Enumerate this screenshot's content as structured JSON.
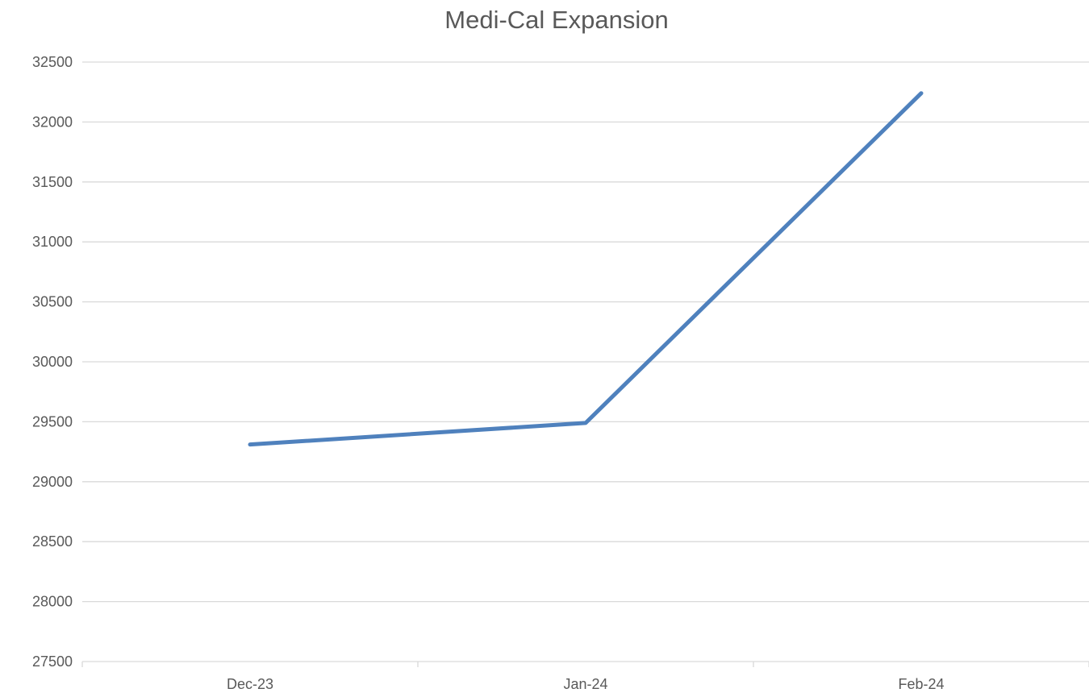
{
  "chart_data": {
    "type": "line",
    "title": "Medi-Cal Expansion",
    "xlabel": "",
    "ylabel": "",
    "categories": [
      "Dec-23",
      "Jan-24",
      "Feb-24"
    ],
    "series": [
      {
        "values": [
          29310,
          29490,
          32240
        ],
        "color": "#4f81bd"
      }
    ],
    "ylim": [
      27500,
      32500
    ],
    "yticks": [
      27500,
      28000,
      28500,
      29000,
      29500,
      30000,
      30500,
      31000,
      31500,
      32000,
      32500
    ],
    "grid": true,
    "legend": "none"
  }
}
